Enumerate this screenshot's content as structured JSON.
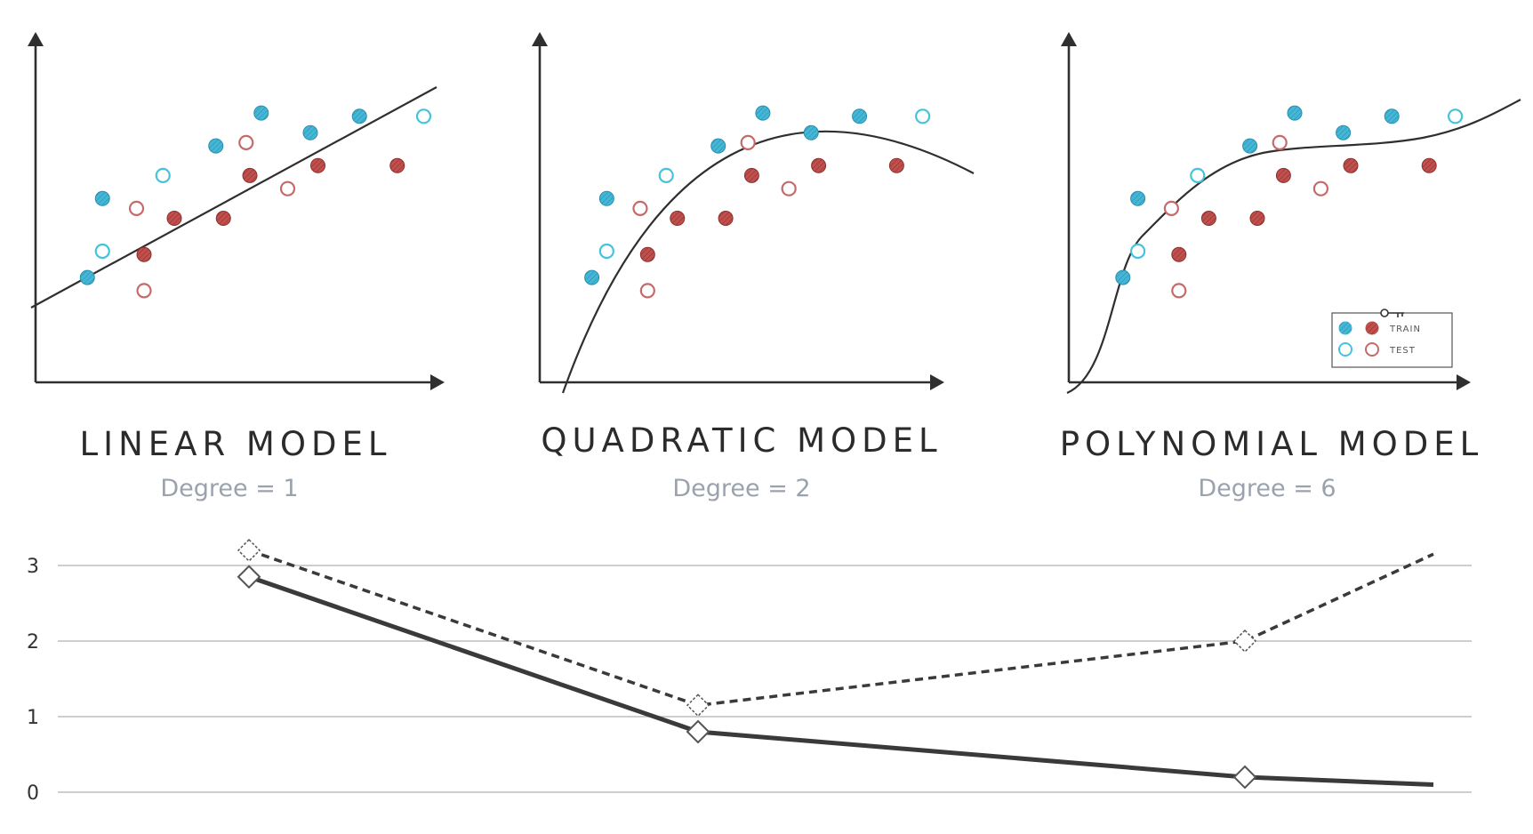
{
  "colors": {
    "train_blue": "#45b7d6",
    "train_red": "#c0504d",
    "test_blue": "#45c3dc",
    "test_red": "#c46a6a",
    "ink": "#2f2f2f",
    "subtitle": "#9aa3ad",
    "grid": "#bdbdbd",
    "background": "#ffffff"
  },
  "chart_data": [
    {
      "type": "scatter",
      "title": "LINEAR MODEL",
      "subtitle": "Degree = 1",
      "fit": "linear",
      "legend": null,
      "points": {
        "train_blue": [
          [
            0.09,
            0.27
          ],
          [
            0.13,
            0.51
          ],
          [
            0.43,
            0.67
          ],
          [
            0.55,
            0.77
          ],
          [
            0.68,
            0.71
          ],
          [
            0.81,
            0.76
          ]
        ],
        "train_red": [
          [
            0.24,
            0.34
          ],
          [
            0.32,
            0.45
          ],
          [
            0.45,
            0.45
          ],
          [
            0.52,
            0.58
          ],
          [
            0.7,
            0.61
          ],
          [
            0.91,
            0.61
          ]
        ],
        "test_blue": [
          [
            0.13,
            0.35
          ],
          [
            0.29,
            0.58
          ],
          [
            0.98,
            0.76
          ]
        ],
        "test_red": [
          [
            0.22,
            0.48
          ],
          [
            0.24,
            0.23
          ],
          [
            0.51,
            0.68
          ],
          [
            0.62,
            0.54
          ]
        ]
      }
    },
    {
      "type": "scatter",
      "title": "QUADRATIC MODEL",
      "subtitle": "Degree = 2",
      "fit": "quadratic",
      "legend": null,
      "points": {
        "train_blue": [
          [
            0.09,
            0.27
          ],
          [
            0.13,
            0.51
          ],
          [
            0.43,
            0.67
          ],
          [
            0.55,
            0.77
          ],
          [
            0.68,
            0.71
          ],
          [
            0.81,
            0.76
          ]
        ],
        "train_red": [
          [
            0.24,
            0.34
          ],
          [
            0.32,
            0.45
          ],
          [
            0.45,
            0.45
          ],
          [
            0.52,
            0.58
          ],
          [
            0.7,
            0.61
          ],
          [
            0.91,
            0.61
          ]
        ],
        "test_blue": [
          [
            0.13,
            0.35
          ],
          [
            0.29,
            0.58
          ],
          [
            0.98,
            0.76
          ]
        ],
        "test_red": [
          [
            0.22,
            0.48
          ],
          [
            0.24,
            0.23
          ],
          [
            0.51,
            0.68
          ],
          [
            0.62,
            0.54
          ]
        ]
      }
    },
    {
      "type": "scatter",
      "title": "POLYNOMIAL MODEL",
      "subtitle": "Degree = 6",
      "fit": "polynomial",
      "legend": {
        "position": "bottom-right",
        "entries": [
          "TRAIN",
          "TEST"
        ]
      },
      "points": {
        "train_blue": [
          [
            0.09,
            0.27
          ],
          [
            0.13,
            0.51
          ],
          [
            0.43,
            0.67
          ],
          [
            0.55,
            0.77
          ],
          [
            0.68,
            0.71
          ],
          [
            0.81,
            0.76
          ]
        ],
        "train_red": [
          [
            0.24,
            0.34
          ],
          [
            0.32,
            0.45
          ],
          [
            0.45,
            0.45
          ],
          [
            0.52,
            0.58
          ],
          [
            0.7,
            0.61
          ],
          [
            0.91,
            0.61
          ]
        ],
        "test_blue": [
          [
            0.13,
            0.35
          ],
          [
            0.29,
            0.58
          ],
          [
            0.98,
            0.76
          ]
        ],
        "test_red": [
          [
            0.22,
            0.48
          ],
          [
            0.24,
            0.23
          ],
          [
            0.51,
            0.68
          ],
          [
            0.62,
            0.54
          ]
        ]
      }
    },
    {
      "type": "line",
      "title": "",
      "xlabel": "",
      "ylabel": "",
      "x": [
        1,
        2,
        6,
        7
      ],
      "y_ticks": [
        "0",
        "1",
        "2",
        "3"
      ],
      "ylim": [
        0,
        3.4
      ],
      "grid": true,
      "series": [
        {
          "style": "solid",
          "values": [
            2.85,
            0.8,
            0.2,
            0.1
          ],
          "markers": [
            true,
            true,
            true,
            false
          ]
        },
        {
          "style": "dashed",
          "values": [
            3.2,
            1.15,
            2.0,
            3.15
          ],
          "markers": [
            true,
            true,
            true,
            false
          ]
        }
      ]
    }
  ]
}
